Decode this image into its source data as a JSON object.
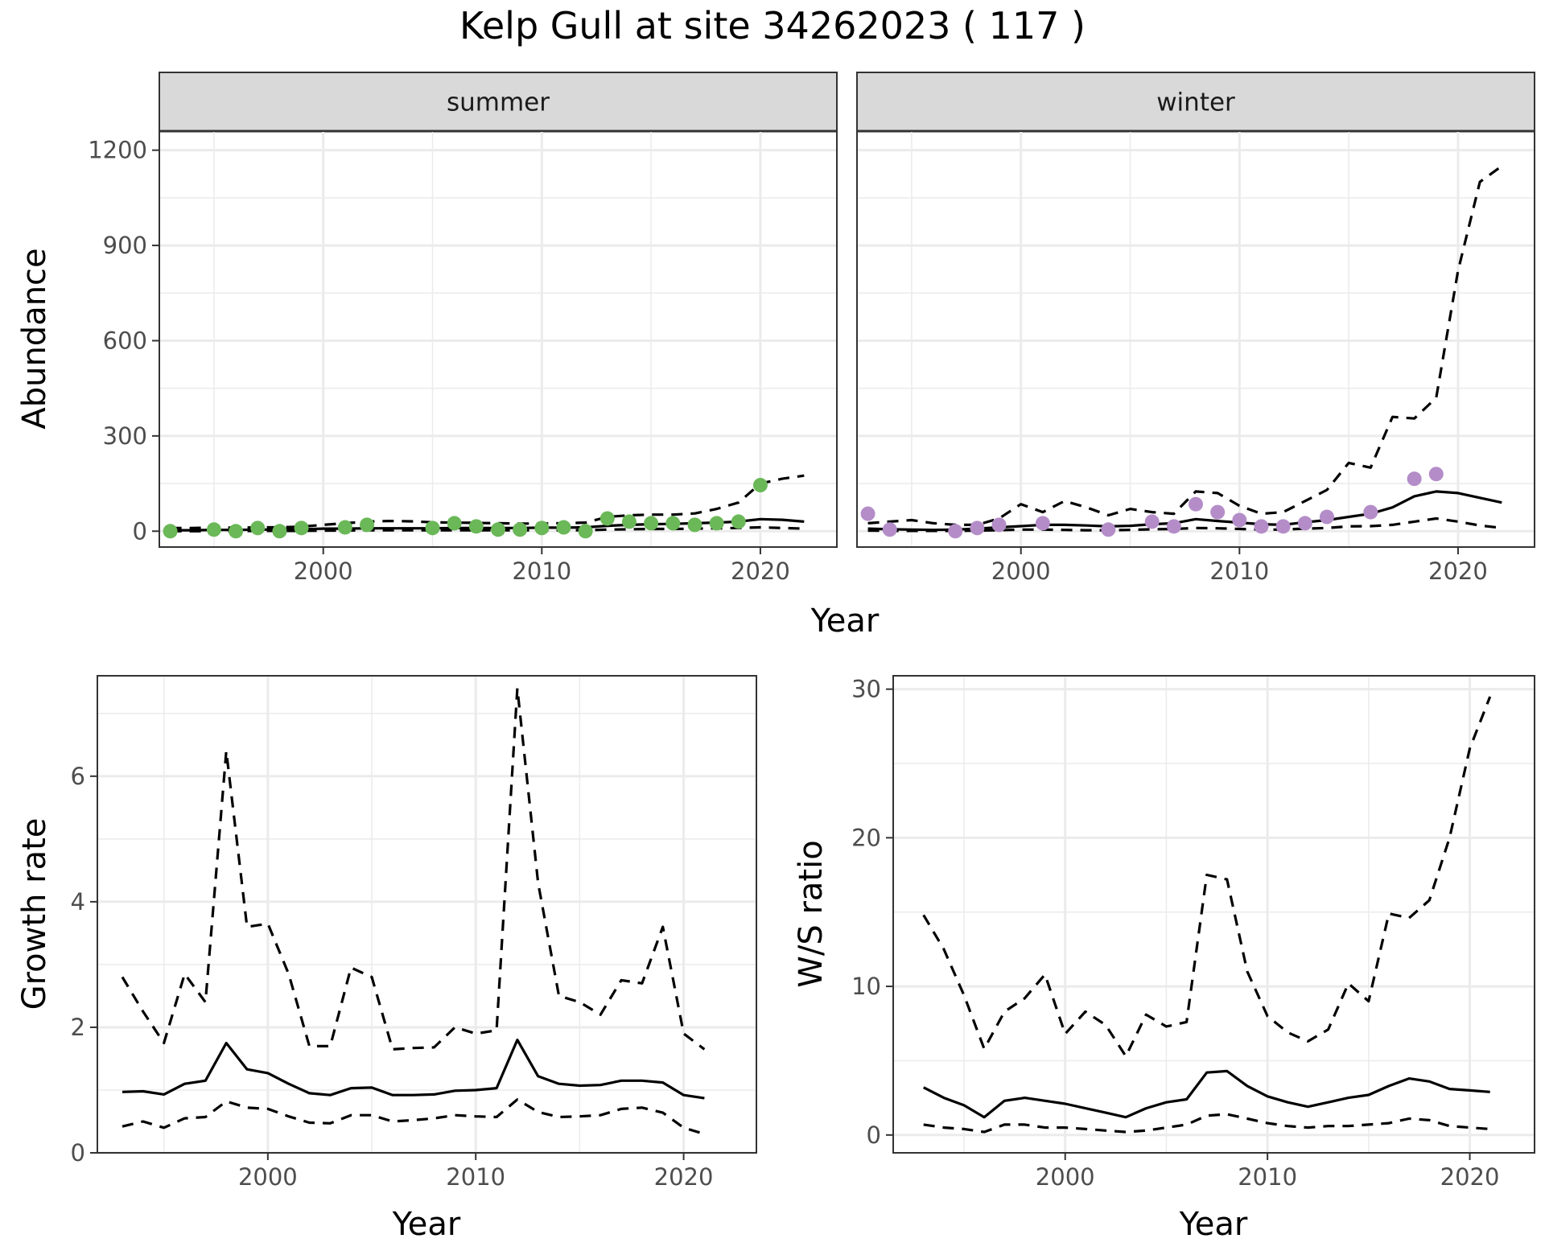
{
  "title": "Kelp Gull at site 34262023 ( 117 )",
  "colors": {
    "summer_points": "#6ab857",
    "winter_points": "#b48dc8",
    "lines": "#000000"
  },
  "chart_data": [
    {
      "type": "line",
      "facet": "summer",
      "ylabel": "Abundance",
      "xlabel": "Year",
      "xlim": [
        1992.5,
        2023.5
      ],
      "ylim": [
        -50,
        1260
      ],
      "x_ticks": [
        2000,
        2010,
        2020
      ],
      "y_ticks": [
        0,
        300,
        600,
        900,
        1200
      ],
      "grid": true,
      "series": [
        {
          "style": "solid",
          "x": [
            1993,
            1994,
            1995,
            1996,
            1997,
            1998,
            1999,
            2000,
            2001,
            2002,
            2003,
            2004,
            2005,
            2006,
            2007,
            2008,
            2009,
            2010,
            2011,
            2012,
            2013,
            2014,
            2015,
            2016,
            2017,
            2018,
            2019,
            2020,
            2021,
            2022
          ],
          "values": [
            3,
            3,
            4,
            4,
            5,
            5,
            6,
            8,
            8,
            9,
            9,
            9,
            9,
            10,
            10,
            10,
            10,
            11,
            11,
            12,
            17,
            20,
            22,
            23,
            25,
            27,
            30,
            38,
            36,
            30
          ]
        },
        {
          "style": "dashed",
          "x": [
            1993,
            1994,
            1995,
            1996,
            1997,
            1998,
            1999,
            2000,
            2001,
            2002,
            2003,
            2004,
            2005,
            2006,
            2007,
            2008,
            2009,
            2010,
            2011,
            2012,
            2013,
            2014,
            2015,
            2016,
            2017,
            2018,
            2019,
            2020,
            2021,
            2022
          ],
          "values": [
            10,
            10,
            11,
            11,
            12,
            12,
            14,
            20,
            25,
            30,
            32,
            31,
            28,
            27,
            26,
            25,
            24,
            24,
            25,
            27,
            45,
            50,
            52,
            52,
            56,
            70,
            90,
            150,
            165,
            175
          ]
        },
        {
          "style": "dashed",
          "x": [
            1993,
            1994,
            1995,
            1996,
            1997,
            1998,
            1999,
            2000,
            2001,
            2002,
            2003,
            2004,
            2005,
            2006,
            2007,
            2008,
            2009,
            2010,
            2011,
            2012,
            2013,
            2014,
            2015,
            2016,
            2017,
            2018,
            2019,
            2020,
            2021,
            2022
          ],
          "values": [
            0,
            0,
            0,
            0,
            1,
            1,
            1,
            2,
            2,
            3,
            3,
            3,
            3,
            3,
            3,
            3,
            3,
            3,
            3,
            3,
            5,
            6,
            7,
            7,
            8,
            9,
            10,
            12,
            10,
            8
          ]
        },
        {
          "style": "points",
          "x": [
            1993,
            1995,
            1996,
            1997,
            1998,
            1999,
            2001,
            2002,
            2005,
            2006,
            2007,
            2008,
            2009,
            2010,
            2011,
            2012,
            2013,
            2014,
            2015,
            2016,
            2017,
            2018,
            2019,
            2020
          ],
          "values": [
            0,
            5,
            0,
            10,
            0,
            10,
            12,
            20,
            10,
            25,
            15,
            5,
            5,
            10,
            12,
            0,
            40,
            30,
            25,
            25,
            20,
            25,
            30,
            145
          ]
        }
      ]
    },
    {
      "type": "line",
      "facet": "winter",
      "ylabel": "Abundance",
      "xlabel": "Year",
      "xlim": [
        1992.5,
        2023.5
      ],
      "ylim": [
        -50,
        1260
      ],
      "x_ticks": [
        2000,
        2010,
        2020
      ],
      "y_ticks": [
        0,
        300,
        600,
        900,
        1200
      ],
      "grid": true,
      "series": [
        {
          "style": "solid",
          "x": [
            1993,
            1994,
            1995,
            1996,
            1997,
            1998,
            1999,
            2000,
            2001,
            2002,
            2003,
            2004,
            2005,
            2006,
            2007,
            2008,
            2009,
            2010,
            2011,
            2012,
            2013,
            2014,
            2015,
            2016,
            2017,
            2018,
            2019,
            2020,
            2021,
            2022
          ],
          "values": [
            8,
            6,
            5,
            4,
            5,
            8,
            12,
            16,
            20,
            20,
            18,
            15,
            17,
            22,
            25,
            38,
            32,
            27,
            22,
            20,
            28,
            35,
            45,
            55,
            75,
            110,
            125,
            120,
            105,
            90
          ]
        },
        {
          "style": "dashed",
          "x": [
            1993,
            1994,
            1995,
            1996,
            1997,
            1998,
            1999,
            2000,
            2001,
            2002,
            2003,
            2004,
            2005,
            2006,
            2007,
            2008,
            2009,
            2010,
            2011,
            2012,
            2013,
            2014,
            2015,
            2016,
            2017,
            2018,
            2019,
            2020,
            2021,
            2022
          ],
          "values": [
            25,
            30,
            35,
            25,
            20,
            20,
            40,
            85,
            60,
            95,
            75,
            50,
            70,
            60,
            55,
            125,
            120,
            80,
            55,
            60,
            95,
            130,
            215,
            200,
            360,
            355,
            420,
            820,
            1100,
            1150
          ]
        },
        {
          "style": "dashed",
          "x": [
            1993,
            1994,
            1995,
            1996,
            1997,
            1998,
            1999,
            2000,
            2001,
            2002,
            2003,
            2004,
            2005,
            2006,
            2007,
            2008,
            2009,
            2010,
            2011,
            2012,
            2013,
            2014,
            2015,
            2016,
            2017,
            2018,
            2019,
            2020,
            2021,
            2022
          ],
          "values": [
            2,
            1,
            1,
            1,
            1,
            2,
            3,
            5,
            5,
            4,
            3,
            3,
            4,
            6,
            7,
            10,
            9,
            7,
            5,
            5,
            8,
            10,
            15,
            16,
            20,
            30,
            40,
            30,
            18,
            10
          ]
        },
        {
          "style": "points",
          "x": [
            1993,
            1994,
            1997,
            1998,
            1999,
            2001,
            2004,
            2006,
            2007,
            2008,
            2009,
            2010,
            2011,
            2012,
            2013,
            2014,
            2016,
            2018,
            2019
          ],
          "values": [
            55,
            5,
            0,
            10,
            20,
            25,
            5,
            30,
            15,
            85,
            60,
            35,
            15,
            15,
            25,
            45,
            60,
            165,
            180
          ]
        }
      ]
    },
    {
      "type": "line",
      "ylabel": "Growth rate",
      "xlabel": "Year",
      "xlim": [
        1991.8,
        2023.5
      ],
      "ylim": [
        0,
        7.6
      ],
      "x_ticks": [
        2000,
        2010,
        2020
      ],
      "y_ticks": [
        0,
        2,
        4,
        6
      ],
      "grid": true,
      "series": [
        {
          "style": "solid",
          "x": [
            1993,
            1994,
            1995,
            1996,
            1997,
            1998,
            1999,
            2000,
            2001,
            2002,
            2003,
            2004,
            2005,
            2006,
            2007,
            2008,
            2009,
            2010,
            2011,
            2012,
            2013,
            2014,
            2015,
            2016,
            2017,
            2018,
            2019,
            2020,
            2021
          ],
          "values": [
            0.97,
            0.98,
            0.93,
            1.1,
            1.15,
            1.75,
            1.33,
            1.27,
            1.1,
            0.95,
            0.92,
            1.03,
            1.04,
            0.92,
            0.92,
            0.93,
            0.99,
            1.0,
            1.03,
            1.8,
            1.22,
            1.1,
            1.07,
            1.08,
            1.15,
            1.15,
            1.12,
            0.92,
            0.87
          ]
        },
        {
          "style": "dashed",
          "x": [
            1993,
            1994,
            1995,
            1996,
            1997,
            1998,
            1999,
            2000,
            2001,
            2002,
            2003,
            2004,
            2005,
            2006,
            2007,
            2008,
            2009,
            2010,
            2011,
            2012,
            2013,
            2014,
            2015,
            2016,
            2017,
            2018,
            2019,
            2020,
            2021
          ],
          "values": [
            2.8,
            2.25,
            1.75,
            2.85,
            2.4,
            6.4,
            3.6,
            3.65,
            2.85,
            1.7,
            1.7,
            2.95,
            2.8,
            1.65,
            1.67,
            1.68,
            2.0,
            1.9,
            1.95,
            7.4,
            4.3,
            2.5,
            2.4,
            2.2,
            2.75,
            2.7,
            3.6,
            1.9,
            1.65
          ]
        },
        {
          "style": "dashed",
          "x": [
            1993,
            1994,
            1995,
            1996,
            1997,
            1998,
            1999,
            2000,
            2001,
            2002,
            2003,
            2004,
            2005,
            2006,
            2007,
            2008,
            2009,
            2010,
            2011,
            2012,
            2013,
            2014,
            2015,
            2016,
            2017,
            2018,
            2019,
            2020,
            2021
          ],
          "values": [
            0.42,
            0.5,
            0.4,
            0.55,
            0.57,
            0.82,
            0.72,
            0.7,
            0.58,
            0.48,
            0.47,
            0.6,
            0.6,
            0.5,
            0.52,
            0.55,
            0.6,
            0.58,
            0.57,
            0.85,
            0.65,
            0.57,
            0.58,
            0.6,
            0.7,
            0.72,
            0.64,
            0.4,
            0.3
          ]
        }
      ]
    },
    {
      "type": "line",
      "ylabel": "W/S ratio",
      "xlabel": "Year",
      "xlim": [
        1991.5,
        2023.2
      ],
      "ylim": [
        -1.2,
        30.9
      ],
      "x_ticks": [
        2000,
        2010,
        2020
      ],
      "y_ticks": [
        0,
        10,
        20,
        30
      ],
      "grid": true,
      "series": [
        {
          "style": "solid",
          "x": [
            1993,
            1994,
            1995,
            1996,
            1997,
            1998,
            1999,
            2000,
            2001,
            2002,
            2003,
            2004,
            2005,
            2006,
            2007,
            2008,
            2009,
            2010,
            2011,
            2012,
            2013,
            2014,
            2015,
            2016,
            2017,
            2018,
            2019,
            2020,
            2021
          ],
          "values": [
            3.2,
            2.5,
            2.0,
            1.2,
            2.3,
            2.5,
            2.3,
            2.1,
            1.8,
            1.5,
            1.2,
            1.8,
            2.2,
            2.4,
            4.2,
            4.3,
            3.3,
            2.6,
            2.2,
            1.9,
            2.2,
            2.5,
            2.7,
            3.3,
            3.8,
            3.6,
            3.1,
            3.0,
            2.9
          ]
        },
        {
          "style": "dashed",
          "x": [
            1993,
            1994,
            1995,
            1996,
            1997,
            1998,
            1999,
            2000,
            2001,
            2002,
            2003,
            2004,
            2005,
            2006,
            2007,
            2008,
            2009,
            2010,
            2011,
            2012,
            2013,
            2014,
            2015,
            2016,
            2017,
            2018,
            2019,
            2020,
            2021
          ],
          "values": [
            14.8,
            12.5,
            9.4,
            5.8,
            8.3,
            9.2,
            10.8,
            6.8,
            8.3,
            7.4,
            5.3,
            8.1,
            7.3,
            7.6,
            17.5,
            17.2,
            11.0,
            8.0,
            6.9,
            6.3,
            7.1,
            10.2,
            9.0,
            14.9,
            14.6,
            15.8,
            20.0,
            26.0,
            29.5
          ]
        },
        {
          "style": "dashed",
          "x": [
            1993,
            1994,
            1995,
            1996,
            1997,
            1998,
            1999,
            2000,
            2001,
            2002,
            2003,
            2004,
            2005,
            2006,
            2007,
            2008,
            2009,
            2010,
            2011,
            2012,
            2013,
            2014,
            2015,
            2016,
            2017,
            2018,
            2019,
            2020,
            2021
          ],
          "values": [
            0.7,
            0.5,
            0.4,
            0.2,
            0.7,
            0.7,
            0.5,
            0.5,
            0.4,
            0.3,
            0.2,
            0.3,
            0.5,
            0.7,
            1.3,
            1.4,
            1.1,
            0.8,
            0.6,
            0.5,
            0.6,
            0.6,
            0.7,
            0.8,
            1.1,
            1.0,
            0.6,
            0.5,
            0.4
          ]
        }
      ]
    }
  ]
}
